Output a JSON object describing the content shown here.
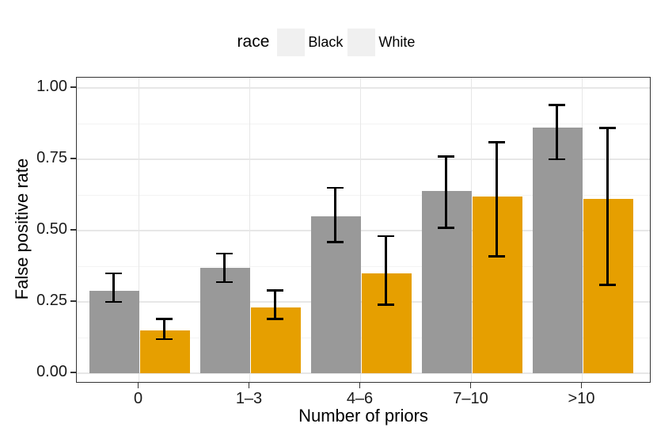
{
  "legend": {
    "title": "race",
    "items": [
      {
        "label": "Black",
        "color": "#999999"
      },
      {
        "label": "White",
        "color": "#E69F00"
      }
    ]
  },
  "chart_data": {
    "type": "bar",
    "title": "",
    "xlabel": "Number of priors",
    "ylabel": "False positive rate",
    "categories": [
      "0",
      "1–3",
      "4–6",
      "7–10",
      ">10"
    ],
    "series": [
      {
        "name": "Black",
        "color": "#999999",
        "values": [
          0.29,
          0.37,
          0.55,
          0.64,
          0.86
        ],
        "ci_low": [
          0.25,
          0.32,
          0.46,
          0.51,
          0.75
        ],
        "ci_high": [
          0.35,
          0.42,
          0.65,
          0.76,
          0.94
        ]
      },
      {
        "name": "White",
        "color": "#E69F00",
        "values": [
          0.15,
          0.23,
          0.35,
          0.62,
          0.61
        ],
        "ci_low": [
          0.12,
          0.19,
          0.24,
          0.41,
          0.31
        ],
        "ci_high": [
          0.19,
          0.29,
          0.48,
          0.81,
          0.86
        ]
      }
    ],
    "ylim": [
      0,
      1
    ],
    "yticks": [
      0,
      0.25,
      0.5,
      0.75,
      1
    ],
    "ytick_labels": [
      "0.00",
      "0.25",
      "0.50",
      "0.75",
      "1.00"
    ],
    "yticks_minor": [
      0.125,
      0.375,
      0.625,
      0.875
    ],
    "grid": true,
    "error_bars": true,
    "legend_position": "top"
  },
  "colors": {
    "panel_border": "#333333",
    "grid_major": "#e7e7e7",
    "grid_minor": "#f3f3f3",
    "error_bar": "#000000",
    "legend_key_bg": "#f0f0f0"
  }
}
